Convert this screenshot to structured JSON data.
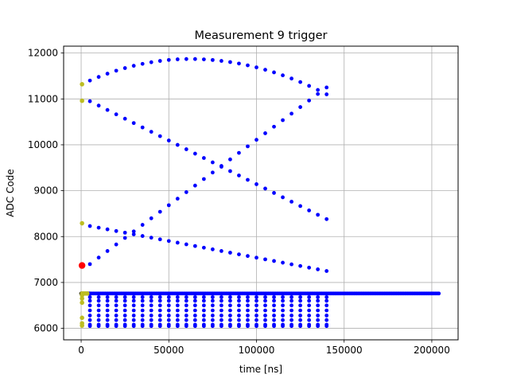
{
  "chart_data": {
    "type": "scatter",
    "title": "Measurement 9 trigger",
    "xlabel": "time [ns]",
    "ylabel": "ADC Code",
    "xlim": [
      -10000,
      215000
    ],
    "ylim": [
      5750,
      12150
    ],
    "xticks": [
      0,
      50000,
      100000,
      150000,
      200000
    ],
    "xtick_labels": [
      "0",
      "50000",
      "100000",
      "150000",
      "200000"
    ],
    "yticks": [
      6000,
      7000,
      8000,
      9000,
      10000,
      11000,
      12000
    ],
    "ytick_labels": [
      "6000",
      "7000",
      "8000",
      "9000",
      "10000",
      "11000",
      "12000"
    ],
    "grid": true,
    "colors": {
      "main": "#0000ff",
      "start": "#bcbd22",
      "trigger": "#ff0000",
      "baseline": "#000000"
    },
    "baseline": {
      "y": 6760,
      "x_start": 0,
      "x_end": 5000,
      "color": "baseline"
    },
    "dense_series": {
      "y": 6760,
      "x_start": 4000,
      "x_end": 204000,
      "step": 1000,
      "color": "main"
    },
    "series": [
      {
        "curve": "arch",
        "x_start": 5000,
        "x_end": 140000,
        "step": 5000,
        "y_start": 11400,
        "y_peak": 11870,
        "x_peak": 62000,
        "y_end": 11100,
        "color": "main"
      },
      {
        "curve": "lin",
        "x_start": 5000,
        "x_end": 140000,
        "step": 5000,
        "y_start": 10950,
        "y_end": 8380,
        "color": "main"
      },
      {
        "curve": "lin",
        "x_start": 5000,
        "x_end": 140000,
        "step": 5000,
        "y_start": 7400,
        "y_end": 11250,
        "color": "main"
      },
      {
        "curve": "lin",
        "x_start": 5000,
        "x_end": 140000,
        "step": 5000,
        "y_start": 8230,
        "y_end": 7250,
        "color": "main"
      },
      {
        "curve": "flat",
        "x_start": 5000,
        "x_end": 140000,
        "step": 5000,
        "y": 6680,
        "color": "main"
      },
      {
        "curve": "flat",
        "x_start": 5000,
        "x_end": 140000,
        "step": 5000,
        "y": 6600,
        "color": "main"
      },
      {
        "curve": "flat",
        "x_start": 5000,
        "x_end": 140000,
        "step": 5000,
        "y": 6500,
        "color": "main"
      },
      {
        "curve": "flat",
        "x_start": 5000,
        "x_end": 140000,
        "step": 5000,
        "y": 6390,
        "color": "main"
      },
      {
        "curve": "flat",
        "x_start": 5000,
        "x_end": 140000,
        "step": 5000,
        "y": 6280,
        "color": "main"
      },
      {
        "curve": "flat",
        "x_start": 5000,
        "x_end": 140000,
        "step": 5000,
        "y": 6180,
        "color": "main"
      },
      {
        "curve": "flat",
        "x_start": 5000,
        "x_end": 140000,
        "step": 5000,
        "y": 6080,
        "color": "main"
      },
      {
        "curve": "flat",
        "x_start": 5000,
        "x_end": 140000,
        "step": 5000,
        "y": 6050,
        "color": "main"
      }
    ],
    "start_points": {
      "color": "start",
      "x": 500,
      "y": [
        11320,
        10960,
        8290,
        6760,
        6720,
        6650,
        6560,
        6230,
        6110,
        6060
      ]
    },
    "trigger_point": {
      "x": 500,
      "y": 7370,
      "color": "trigger"
    }
  }
}
